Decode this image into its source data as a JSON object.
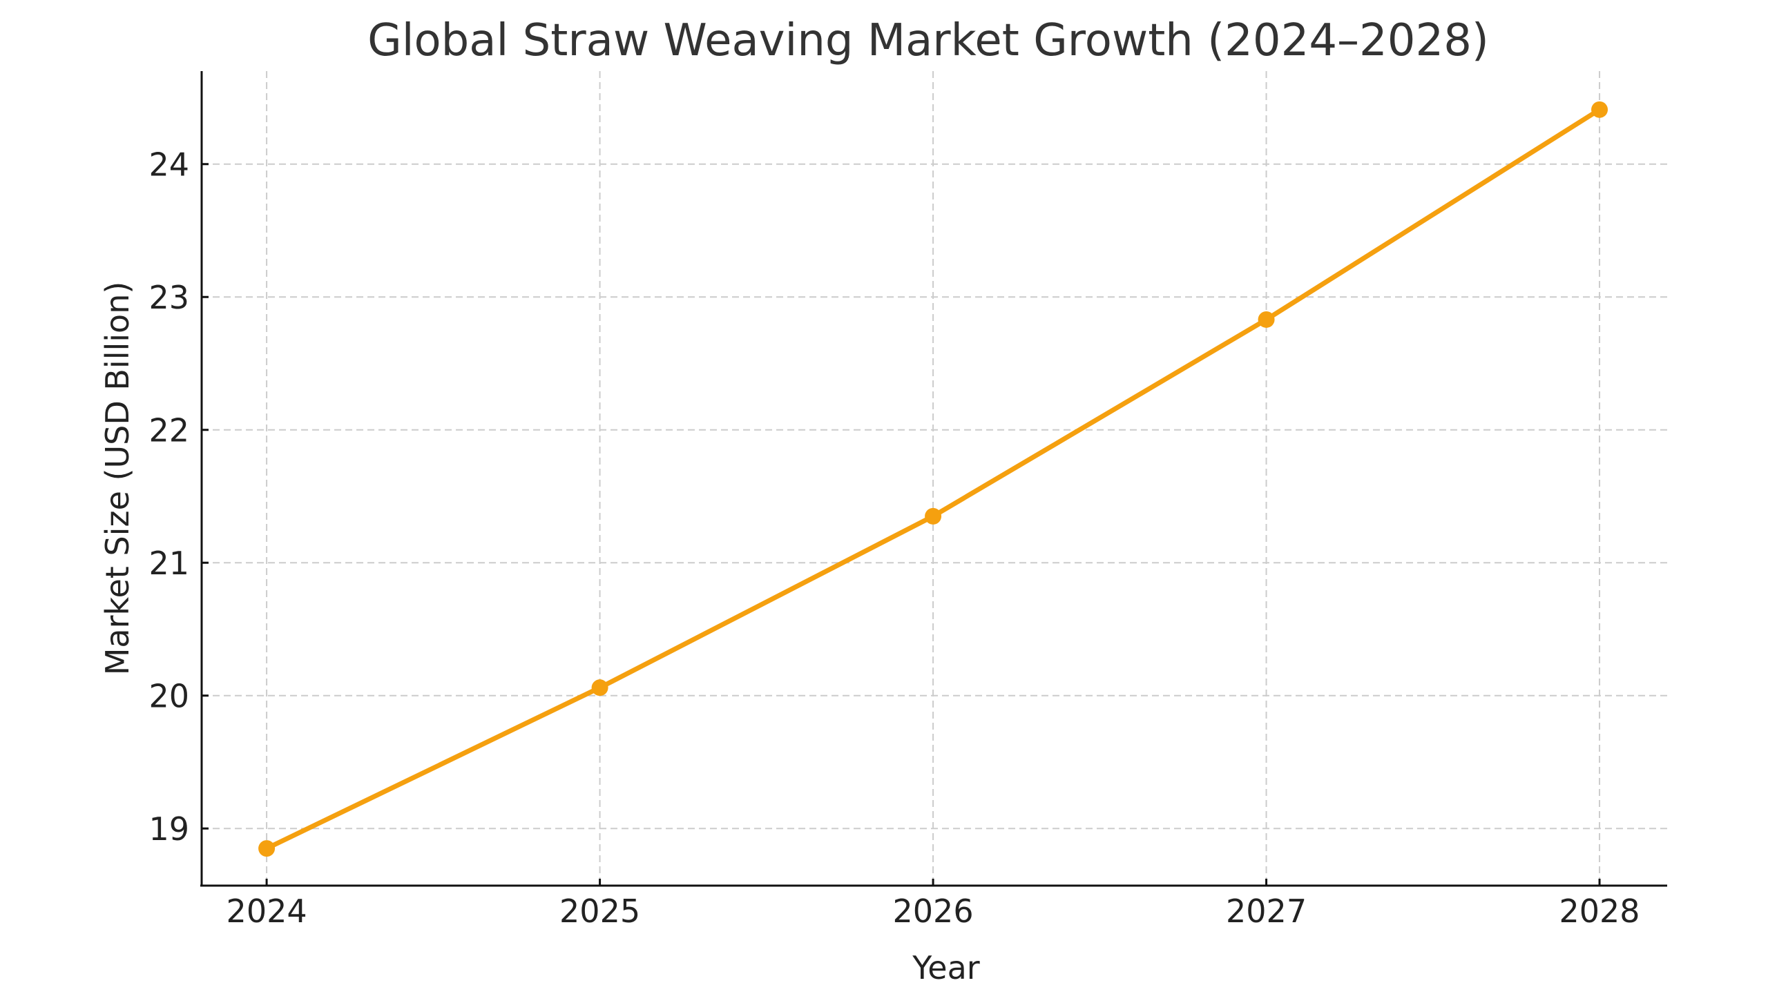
{
  "chart_data": {
    "type": "line",
    "title": "Global Straw Weaving Market Growth (2024–2028)",
    "xlabel": "Year",
    "ylabel": "Market Size (USD Billion)",
    "x": [
      2024,
      2025,
      2026,
      2027,
      2028
    ],
    "series": [
      {
        "name": "Market Size",
        "values": [
          18.85,
          20.06,
          21.35,
          22.83,
          24.41
        ],
        "color": "#f5a00f",
        "marker": "circle"
      }
    ],
    "xticks": [
      "2024",
      "2025",
      "2026",
      "2027",
      "2028"
    ],
    "yticks": [
      19,
      20,
      21,
      22,
      23,
      24
    ],
    "xlim": [
      2023.805,
      2028.203
    ],
    "ylim": [
      18.57,
      24.7
    ],
    "grid": true,
    "grid_style": "dashed",
    "legend": null
  }
}
